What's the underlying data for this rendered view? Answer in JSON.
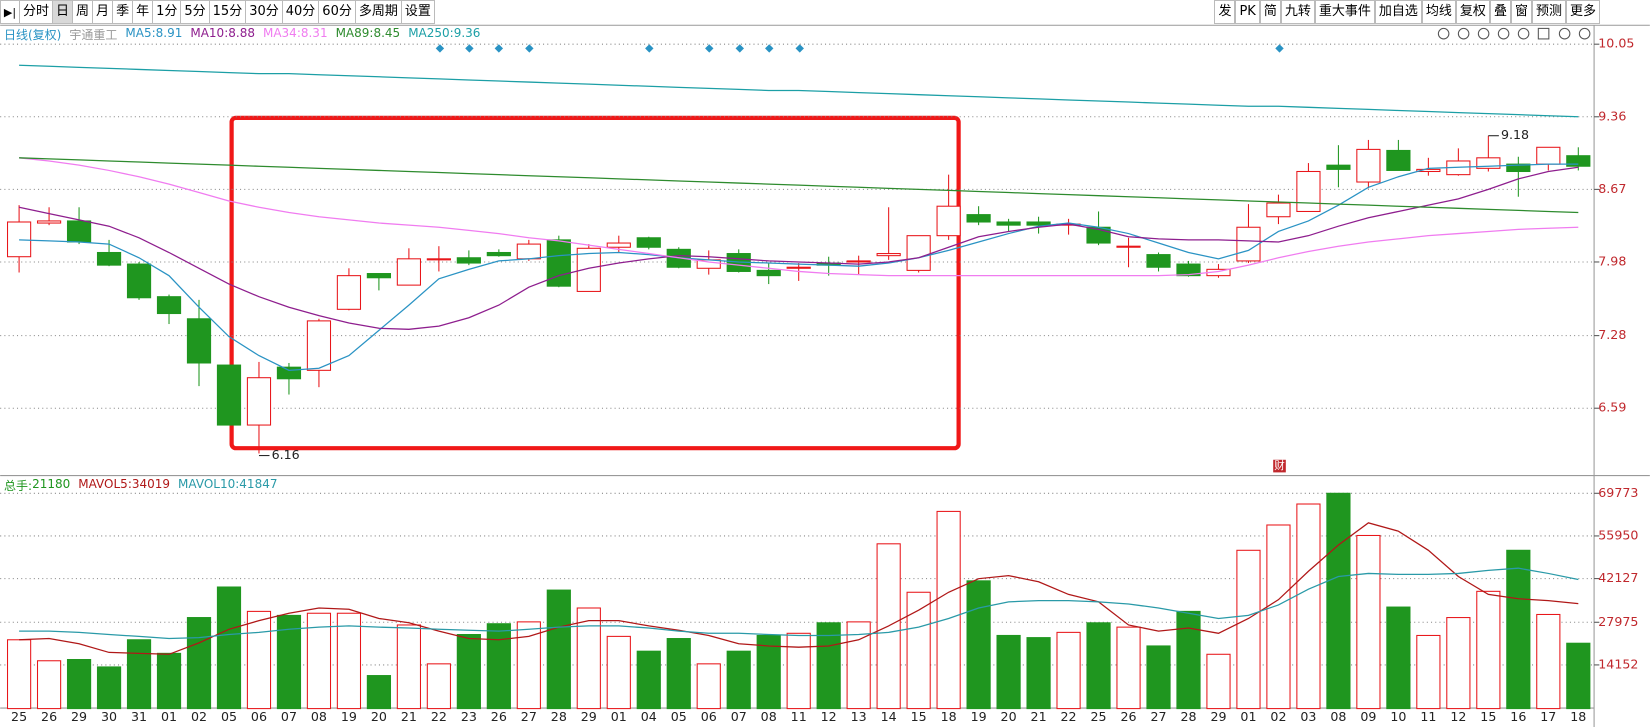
{
  "toolbar": {
    "left": [
      "分时",
      "日",
      "周",
      "月",
      "季",
      "年",
      "1分",
      "5分",
      "15分",
      "30分",
      "40分",
      "60分",
      "多周期",
      "设置"
    ],
    "active": 1,
    "right": [
      "发",
      "PK",
      "简",
      "九转",
      "重大事件",
      "加自选",
      "均线",
      "复权",
      "叠",
      "窗",
      "预测",
      "更多"
    ]
  },
  "chart_data": [
    {
      "type": "candlestick",
      "title": "日线(复权)",
      "subtitle": "宇通重工",
      "up_color": "#e8161a",
      "down_color": "#1f961f",
      "open": [
        8.03,
        8.35,
        8.37,
        8.07,
        7.96,
        7.65,
        7.44,
        7,
        6.43,
        6.98,
        6.95,
        7.53,
        7.87,
        7.76,
        8,
        8.02,
        8.07,
        8.01,
        8.19,
        7.7,
        8.12,
        8.21,
        8.1,
        7.92,
        8.06,
        7.9,
        7.92,
        7.97,
        7.98,
        8.04,
        7.9,
        8.23,
        8.43,
        8.36,
        8.36,
        8.33,
        8.31,
        8.12,
        8.05,
        7.96,
        7.85,
        7.99,
        8.41,
        8.46,
        8.9,
        8.74,
        9.04,
        8.84,
        8.81,
        8.87,
        8.91,
        8.91,
        8.99
      ],
      "high": [
        8.52,
        8.5,
        8.5,
        8.19,
        7.98,
        7.67,
        7.62,
        7,
        7.03,
        7.02,
        7.44,
        7.92,
        7.87,
        8.11,
        8.13,
        8.09,
        8.1,
        8.19,
        8.23,
        8.15,
        8.23,
        8.22,
        8.12,
        8.09,
        8.1,
        7.97,
        7.97,
        8.03,
        8.04,
        8.5,
        8.23,
        8.81,
        8.51,
        8.39,
        8.41,
        8.39,
        8.46,
        8.21,
        8.07,
        7.99,
        7.96,
        8.53,
        8.62,
        8.92,
        9.09,
        9.14,
        9.14,
        8.97,
        9.06,
        9.18,
        8.98,
        9.07,
        9.07
      ],
      "low": [
        7.88,
        8.33,
        8.15,
        7.94,
        7.62,
        7.39,
        6.8,
        6.43,
        6.16,
        6.72,
        6.79,
        7.52,
        7.71,
        7.76,
        7.89,
        7.95,
        8.03,
        7.99,
        7.74,
        7.7,
        8.07,
        8.1,
        7.92,
        7.86,
        7.88,
        7.77,
        7.8,
        7.85,
        7.86,
        8,
        7.88,
        8.19,
        8.33,
        8.27,
        8.25,
        8.24,
        8.14,
        7.93,
        7.89,
        7.84,
        7.83,
        7.97,
        8.34,
        8.46,
        8.69,
        8.68,
        8.85,
        8.8,
        8.8,
        8.84,
        8.6,
        8.85,
        8.85
      ],
      "close": [
        8.36,
        8.37,
        8.17,
        7.95,
        7.64,
        7.49,
        7.02,
        6.43,
        6.88,
        6.87,
        7.42,
        7.85,
        7.83,
        8.01,
        8.01,
        7.97,
        8.04,
        8.15,
        7.75,
        8.11,
        8.16,
        8.12,
        7.93,
        8,
        7.89,
        7.85,
        7.93,
        7.95,
        7.99,
        8.06,
        8.23,
        8.51,
        8.36,
        8.33,
        8.33,
        8.34,
        8.16,
        8.13,
        7.93,
        7.85,
        7.91,
        8.31,
        8.54,
        8.84,
        8.86,
        9.05,
        8.85,
        8.86,
        8.94,
        8.97,
        8.84,
        9.07,
        8.89
      ],
      "lines": [
        {
          "name": "MA5",
          "color": "#2a93c4",
          "values": [
            8.19,
            8.18,
            8.17,
            8.15,
            8.02,
            7.85,
            7.55,
            7.27,
            7.09,
            6.95,
            6.97,
            7.09,
            7.33,
            7.57,
            7.82,
            7.91,
            7.99,
            8.01,
            8.04,
            8.06,
            8.07,
            8.05,
            8.02,
            8,
            7.98,
            7.97,
            7.96,
            7.95,
            7.94,
            7.97,
            8.02,
            8.09,
            8.17,
            8.25,
            8.32,
            8.35,
            8.31,
            8.25,
            8.16,
            8.07,
            8.01,
            8.09,
            8.27,
            8.37,
            8.52,
            8.69,
            8.79,
            8.87,
            8.88,
            8.89,
            8.9,
            8.91,
            8.91
          ]
        },
        {
          "name": "MA10",
          "color": "#8e1e8e",
          "values": [
            8.5,
            8.44,
            8.38,
            8.32,
            8.21,
            8.07,
            7.92,
            7.77,
            7.65,
            7.55,
            7.47,
            7.4,
            7.35,
            7.34,
            7.37,
            7.45,
            7.57,
            7.74,
            7.85,
            7.92,
            7.97,
            8.01,
            8.04,
            8.03,
            8.01,
            7.99,
            7.98,
            7.97,
            7.96,
            7.98,
            8.02,
            8.12,
            8.22,
            8.27,
            8.31,
            8.34,
            8.29,
            8.22,
            8.2,
            8.19,
            8.19,
            8.18,
            8.17,
            8.23,
            8.32,
            8.4,
            8.46,
            8.52,
            8.58,
            8.67,
            8.77,
            8.84,
            8.88
          ]
        },
        {
          "name": "MA34",
          "color": "#f07cf0",
          "values": [
            8.97,
            8.94,
            8.9,
            8.85,
            8.79,
            8.72,
            8.64,
            8.56,
            8.5,
            8.45,
            8.41,
            8.38,
            8.35,
            8.33,
            8.31,
            8.28,
            8.25,
            8.21,
            8.18,
            8.14,
            8.1,
            8.06,
            8.02,
            7.98,
            7.95,
            7.92,
            7.89,
            7.87,
            7.86,
            7.85,
            7.85,
            7.85,
            7.85,
            7.85,
            7.85,
            7.85,
            7.85,
            7.85,
            7.85,
            7.86,
            7.89,
            7.95,
            8.02,
            8.08,
            8.13,
            8.17,
            8.2,
            8.23,
            8.25,
            8.27,
            8.29,
            8.3,
            8.31
          ]
        },
        {
          "name": "MA89",
          "color": "#2e8b2e",
          "values": [
            8.97,
            8.96,
            8.95,
            8.94,
            8.93,
            8.92,
            8.91,
            8.9,
            8.89,
            8.88,
            8.87,
            8.86,
            8.85,
            8.84,
            8.83,
            8.82,
            8.81,
            8.8,
            8.79,
            8.78,
            8.77,
            8.76,
            8.75,
            8.74,
            8.73,
            8.72,
            8.71,
            8.7,
            8.69,
            8.68,
            8.67,
            8.66,
            8.65,
            8.64,
            8.63,
            8.62,
            8.61,
            8.6,
            8.59,
            8.58,
            8.57,
            8.56,
            8.55,
            8.54,
            8.53,
            8.52,
            8.51,
            8.5,
            8.49,
            8.48,
            8.47,
            8.46,
            8.45
          ]
        },
        {
          "name": "MA250",
          "color": "#1c9fa6",
          "values": [
            9.85,
            9.84,
            9.83,
            9.82,
            9.81,
            9.8,
            9.79,
            9.78,
            9.77,
            9.77,
            9.76,
            9.75,
            9.74,
            9.73,
            9.72,
            9.71,
            9.7,
            9.69,
            9.68,
            9.67,
            9.66,
            9.65,
            9.64,
            9.63,
            9.62,
            9.61,
            9.61,
            9.6,
            9.59,
            9.58,
            9.57,
            9.56,
            9.55,
            9.54,
            9.53,
            9.52,
            9.51,
            9.5,
            9.49,
            9.48,
            9.47,
            9.46,
            9.46,
            9.45,
            9.44,
            9.43,
            9.42,
            9.41,
            9.4,
            9.39,
            9.38,
            9.37,
            9.36
          ]
        }
      ],
      "ylim": [
        5.97,
        10.22
      ],
      "yticks": [
        6.59,
        7.28,
        7.98,
        8.67,
        9.36,
        10.05
      ],
      "grid": true,
      "annotations": [
        "财"
      ]
    },
    {
      "type": "bar",
      "categories": [
        "25",
        "26",
        "29",
        "30",
        "31",
        "01",
        "02",
        "05",
        "06",
        "07",
        "08",
        "19",
        "20",
        "21",
        "22",
        "23",
        "26",
        "27",
        "28",
        "29",
        "01",
        "04",
        "05",
        "06",
        "07",
        "08",
        "11",
        "12",
        "13",
        "14",
        "15",
        "18",
        "19",
        "20",
        "21",
        "22",
        "25",
        "26",
        "27",
        "28",
        "29",
        "01",
        "02",
        "03",
        "08",
        "09",
        "10",
        "11",
        "12",
        "15",
        "16",
        "17",
        "18"
      ],
      "series": [
        {
          "name": "总手",
          "color": "#1f961f",
          "values": [
            22300,
            15500,
            15900,
            13500,
            22300,
            17900,
            29500,
            39400,
            31500,
            30200,
            30900,
            30900,
            10700,
            27100,
            14500,
            24000,
            27500,
            28100,
            38400,
            32600,
            23400,
            18600,
            22700,
            14500,
            18600,
            23700,
            24400,
            27800,
            28100,
            53400,
            37700,
            63900,
            41400,
            23700,
            23000,
            24700,
            27800,
            26400,
            20300,
            31500,
            17600,
            51300,
            59500,
            66300,
            69773,
            56100,
            32900,
            23700,
            29500,
            38000,
            51300,
            30500,
            21180
          ]
        }
      ],
      "lines": [
        {
          "name": "MAVOL5",
          "color": "#b01818",
          "values": [
            22300,
            22700,
            21000,
            18200,
            17900,
            17600,
            21300,
            25700,
            28500,
            30900,
            32600,
            32200,
            29200,
            27800,
            25100,
            22700,
            22300,
            23400,
            26400,
            28500,
            28500,
            26800,
            25400,
            23700,
            21000,
            20300,
            19900,
            20300,
            22300,
            26800,
            31900,
            37700,
            42100,
            43100,
            41100,
            37000,
            34600,
            27100,
            25100,
            26100,
            24400,
            29200,
            35300,
            44500,
            53000,
            60200,
            57500,
            51300,
            42800,
            37000,
            35600,
            35000,
            34019
          ]
        },
        {
          "name": "MAVOL10",
          "color": "#2a9aa8",
          "values": [
            25100,
            25100,
            24700,
            24000,
            23400,
            22700,
            23000,
            24000,
            24700,
            25700,
            26400,
            26800,
            26400,
            26100,
            25700,
            25400,
            25100,
            25700,
            26400,
            26800,
            26800,
            26100,
            25100,
            24400,
            24400,
            24000,
            23700,
            23700,
            24000,
            24700,
            26400,
            29200,
            32600,
            34600,
            35000,
            35000,
            34600,
            33900,
            32600,
            30900,
            29200,
            30200,
            33600,
            38700,
            42800,
            43800,
            43500,
            43500,
            43800,
            44800,
            45500,
            43800,
            41847
          ]
        }
      ],
      "ylim": [
        0,
        74500
      ],
      "yticks": [
        14152,
        27975,
        42127,
        55950,
        69773
      ],
      "grid": true
    }
  ]
}
